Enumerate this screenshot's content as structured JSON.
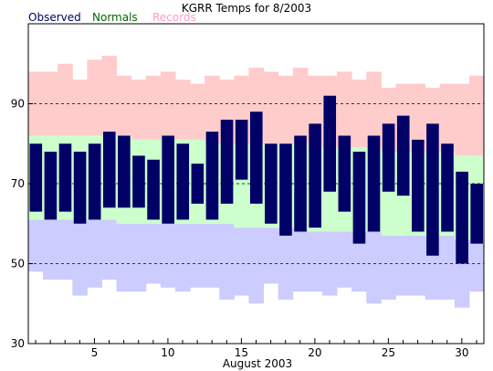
{
  "chart_data": {
    "type": "bar",
    "title": "KGRR Temps for 8/2003",
    "xlabel": "August 2003",
    "ylabel": "",
    "ylim": [
      30,
      110
    ],
    "xlim": [
      0.5,
      31.5
    ],
    "grid": "dashed horizontal lines at 50, 70, 90",
    "yticks": [
      "30",
      "50",
      "70",
      "90"
    ],
    "xticks": [
      "5",
      "10",
      "15",
      "20",
      "25",
      "30"
    ],
    "legend": {
      "placement": "top-left",
      "entries": [
        {
          "label": "Observed",
          "color": "#000066"
        },
        {
          "label": "Normals",
          "color": "#006600"
        },
        {
          "label": "Records",
          "color": "#ff99cc"
        }
      ]
    },
    "colors": {
      "observed": "#000066",
      "normals": "#ccffcc",
      "records_high": "#ffcccc",
      "records_low": "#ccccff"
    },
    "days": [
      1,
      2,
      3,
      4,
      5,
      6,
      7,
      8,
      9,
      10,
      11,
      12,
      13,
      14,
      15,
      16,
      17,
      18,
      19,
      20,
      21,
      22,
      23,
      24,
      25,
      26,
      27,
      28,
      29,
      30,
      31
    ],
    "series": [
      {
        "name": "Observed",
        "key": "obs_high",
        "values": [
          80,
          78,
          80,
          78,
          80,
          83,
          82,
          77,
          76,
          82,
          80,
          75,
          83,
          86,
          86,
          88,
          80,
          80,
          82,
          85,
          92,
          82,
          78,
          82,
          85,
          87,
          81,
          85,
          80,
          73,
          70
        ]
      },
      {
        "name": "Observed",
        "key": "obs_low",
        "values": [
          63,
          61,
          63,
          60,
          61,
          64,
          64,
          64,
          61,
          60,
          61,
          65,
          61,
          65,
          71,
          65,
          60,
          57,
          58,
          59,
          68,
          63,
          55,
          58,
          68,
          67,
          58,
          52,
          58,
          50,
          55
        ]
      },
      {
        "name": "Normals",
        "key": "norm_high",
        "values": [
          82,
          82,
          82,
          82,
          82,
          82,
          82,
          81,
          81,
          81,
          81,
          81,
          80,
          80,
          80,
          80,
          80,
          80,
          80,
          79,
          79,
          79,
          79,
          79,
          78,
          78,
          78,
          78,
          78,
          77,
          77
        ]
      },
      {
        "name": "Normals",
        "key": "norm_low",
        "values": [
          61,
          61,
          61,
          61,
          61,
          61,
          60,
          60,
          60,
          60,
          60,
          60,
          60,
          60,
          59,
          59,
          59,
          59,
          59,
          58,
          58,
          58,
          58,
          58,
          57,
          57,
          57,
          57,
          57,
          56,
          56
        ]
      },
      {
        "name": "Records",
        "key": "rec_high",
        "values": [
          98,
          98,
          100,
          96,
          101,
          102,
          97,
          96,
          97,
          98,
          96,
          95,
          97,
          96,
          97,
          99,
          98,
          97,
          99,
          97,
          97,
          98,
          96,
          98,
          94,
          95,
          95,
          94,
          95,
          95,
          97
        ]
      },
      {
        "name": "Records",
        "key": "rec_low",
        "values": [
          48,
          46,
          46,
          42,
          44,
          46,
          43,
          43,
          45,
          44,
          43,
          44,
          44,
          41,
          42,
          40,
          45,
          41,
          43,
          43,
          42,
          44,
          43,
          40,
          41,
          42,
          42,
          41,
          41,
          39,
          43
        ]
      }
    ]
  }
}
